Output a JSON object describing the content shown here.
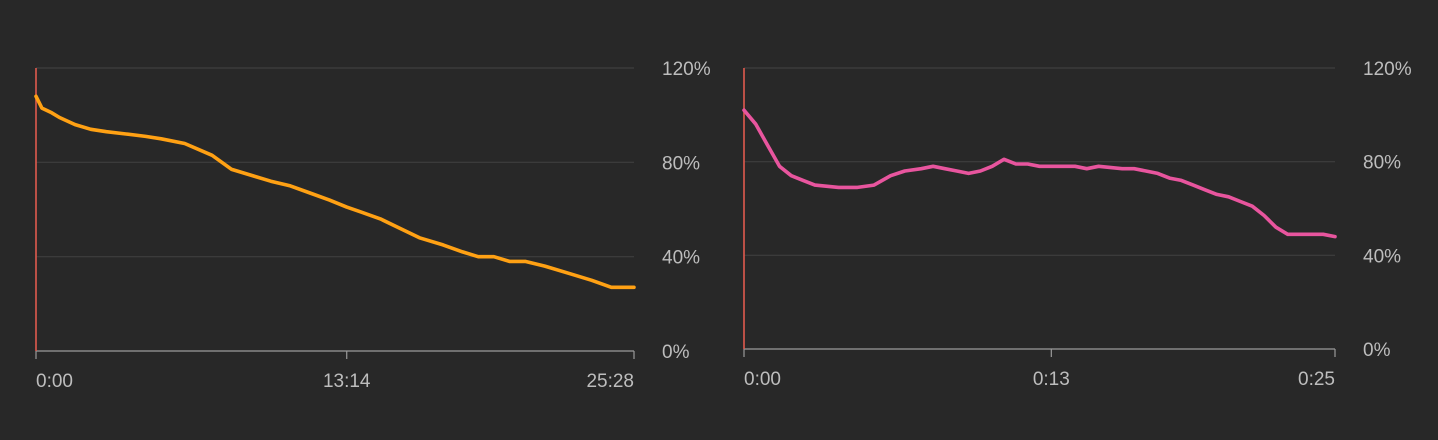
{
  "colors": {
    "background": "#282828",
    "grid": "#3e3e3e",
    "axis_text": "#bdbdbd",
    "start_marker": "#e05a4e"
  },
  "chart_data": [
    {
      "type": "line",
      "y_axis_position": "right",
      "ylim": [
        0,
        120
      ],
      "y_ticks": [
        0,
        40,
        80,
        120
      ],
      "y_tick_labels": [
        "0%",
        "40%",
        "80%",
        "120%"
      ],
      "grid": true,
      "x_unit": "minutes:seconds",
      "xlim": [
        0,
        1528
      ],
      "x_tick_values": [
        0,
        794,
        1528
      ],
      "x_tick_labels": [
        "0:00",
        "13:14",
        "25:28"
      ],
      "series": [
        {
          "color": "#ffa114",
          "x": [
            0,
            15,
            40,
            60,
            100,
            140,
            180,
            230,
            280,
            320,
            380,
            450,
            500,
            560,
            600,
            650,
            700,
            750,
            794,
            830,
            880,
            930,
            980,
            1040,
            1090,
            1130,
            1170,
            1210,
            1250,
            1300,
            1360,
            1420,
            1470,
            1528
          ],
          "y": [
            108,
            103,
            101,
            99,
            96,
            94,
            93,
            92,
            91,
            90,
            88,
            83,
            77,
            74,
            72,
            70,
            67,
            64,
            61,
            59,
            56,
            52,
            48,
            45,
            42,
            40,
            40,
            38,
            38,
            36,
            33,
            30,
            27,
            27
          ]
        }
      ]
    },
    {
      "type": "line",
      "y_axis_position": "right",
      "ylim": [
        0,
        120
      ],
      "y_ticks": [
        0,
        40,
        80,
        120
      ],
      "y_tick_labels": [
        "0%",
        "40%",
        "80%",
        "120%"
      ],
      "grid": true,
      "x_unit": "minutes:seconds",
      "xlim": [
        0,
        25
      ],
      "x_tick_values": [
        0,
        13,
        25
      ],
      "x_tick_labels": [
        "0:00",
        "0:13",
        "0:25"
      ],
      "series": [
        {
          "color": "#e8559e",
          "x": [
            0,
            0.5,
            1,
            1.5,
            2,
            2.5,
            3,
            4,
            4.8,
            5.5,
            6.2,
            6.8,
            7.5,
            8,
            8.5,
            9,
            9.5,
            10,
            10.5,
            11,
            11.5,
            12,
            12.5,
            13,
            13.5,
            14,
            14.5,
            15,
            16,
            16.5,
            17,
            17.5,
            18,
            18.5,
            19,
            19.5,
            20,
            20.5,
            21,
            21.5,
            22,
            22.5,
            23,
            23.5,
            24,
            24.5,
            25
          ],
          "y": [
            102,
            96,
            87,
            78,
            74,
            72,
            70,
            69,
            69,
            70,
            74,
            76,
            77,
            78,
            77,
            76,
            75,
            76,
            78,
            81,
            79,
            79,
            78,
            78,
            78,
            78,
            77,
            78,
            77,
            77,
            76,
            75,
            73,
            72,
            70,
            68,
            66,
            65,
            63,
            61,
            57,
            52,
            49,
            49,
            49,
            49,
            48
          ]
        }
      ]
    }
  ]
}
